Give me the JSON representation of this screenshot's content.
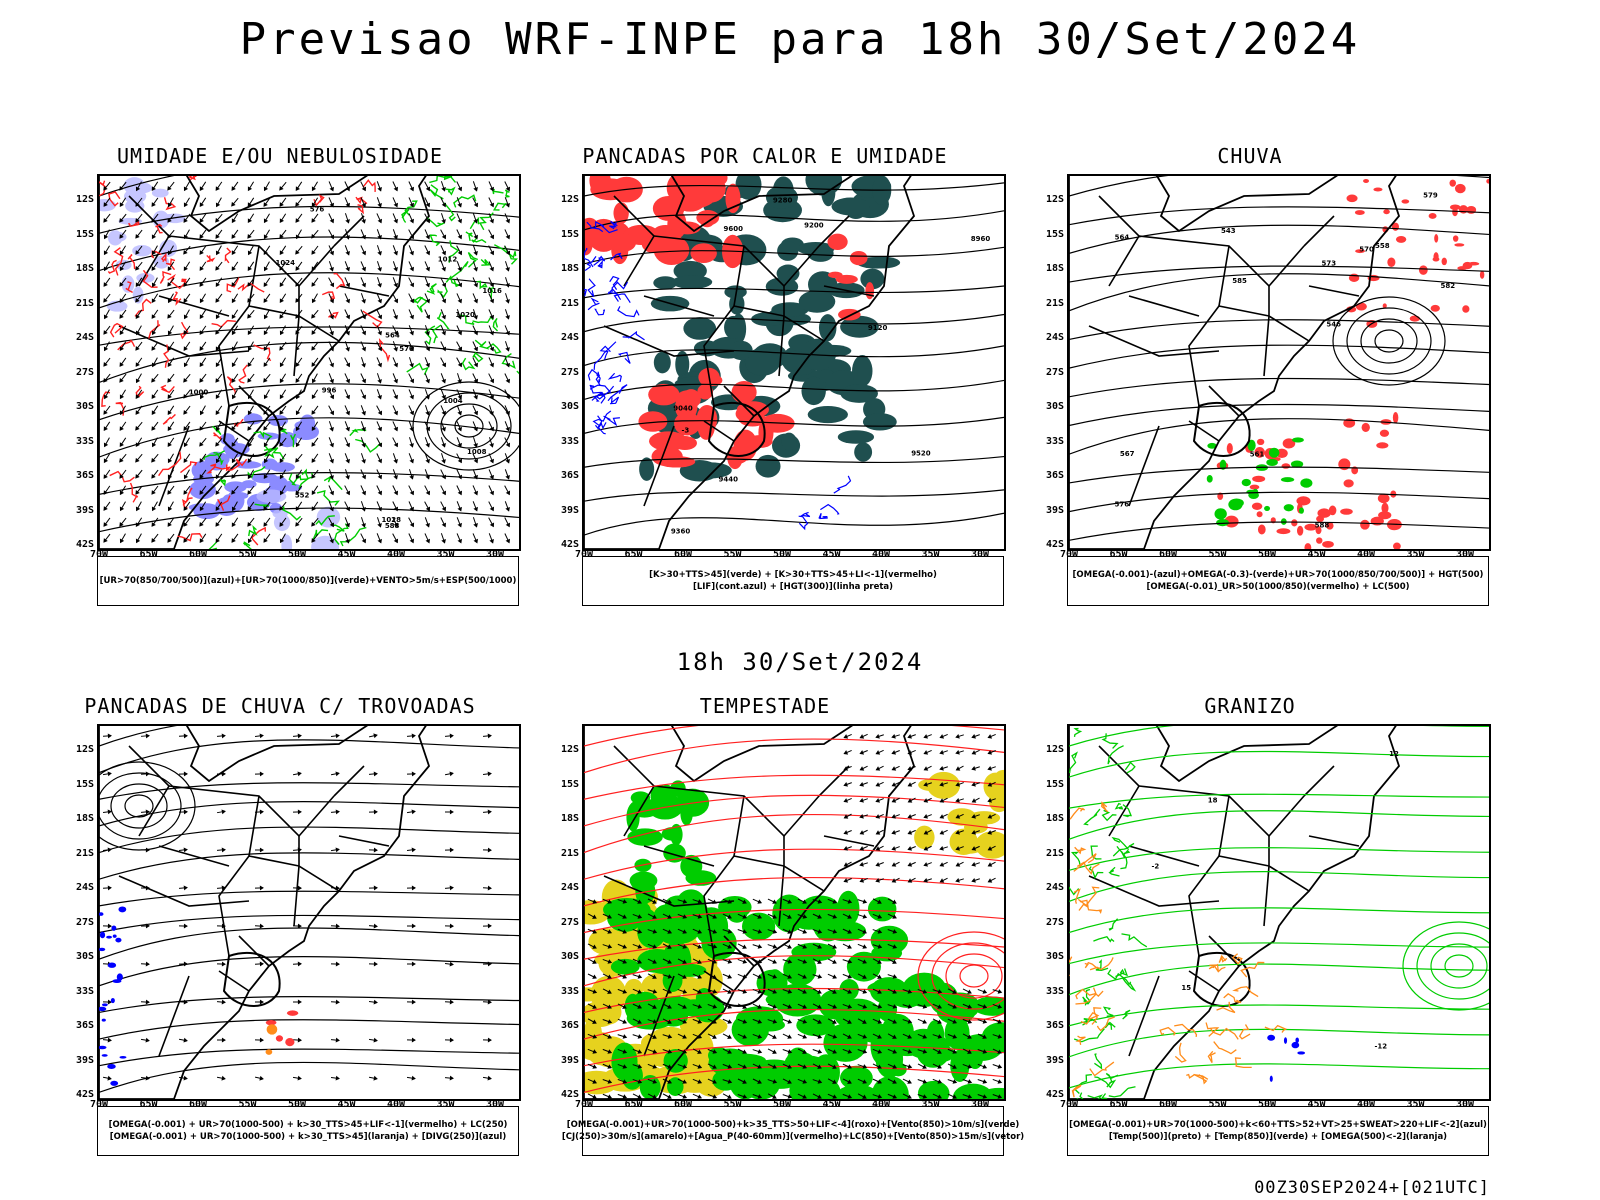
{
  "header": {
    "title": "Previsao WRF-INPE  para 18h 30/Set/2024",
    "subtitle": "18h 30/Set/2024"
  },
  "colors": {
    "land_border": "#000000",
    "blue_fill": "#7f7fff",
    "blue_line": "#0000ff",
    "green_line": "#00cc00",
    "green_fill": "#00cc00",
    "red_line": "#ff2020",
    "red_fill": "#ff3a3a",
    "dark_teal_fill": "#1f4f4f",
    "yellow_fill": "#e6d21e",
    "orange_line": "#ff8c1a",
    "light_purple_fill": "#b8b8ff"
  },
  "axes": {
    "lat_labels": [
      "12S",
      "15S",
      "18S",
      "21S",
      "24S",
      "27S",
      "30S",
      "33S",
      "36S",
      "39S",
      "42S"
    ],
    "lon_labels": [
      "70W",
      "65W",
      "60W",
      "55W",
      "50W",
      "45W",
      "40W",
      "35W",
      "30W"
    ]
  },
  "panels": [
    {
      "id": "umidade",
      "title": "UMIDADE E/OU NEBULOSIDADE",
      "legend": [
        "[UR>70(850/700/500)](azul)+[UR>70(1000/850)](verde)+VENTO>5m/s+ESP(500/1000)"
      ],
      "contour_labels": [
        "1008",
        "1004",
        "1012",
        "1020",
        "1024",
        "1028",
        "1016",
        "1000",
        "996",
        "552",
        "576",
        "564",
        "570",
        "588"
      ]
    },
    {
      "id": "pancadas-calor",
      "title": "PANCADAS POR CALOR E UMIDADE",
      "legend": [
        "[K>30+TTS>45](verde) + [K>30+TTS>45+LI<-1](vermelho)",
        "[LIF](cont.azul) + [HGT(300)](linha preta)"
      ],
      "contour_labels": [
        "9600",
        "9520",
        "9440",
        "9360",
        "9280",
        "9200",
        "9120",
        "9040",
        "8960",
        "-3"
      ]
    },
    {
      "id": "chuva",
      "title": "CHUVA",
      "legend": [
        "[OMEGA(-0.001)-(azul)+OMEGA(-0.3)-(verde)+UR>70(1000/850/700/500)] + HGT(500)",
        "[OMEGA(-0.01)_UR>50(1000/850)(vermelho) + LC(500)"
      ],
      "contour_labels": [
        "588",
        "585",
        "582",
        "579",
        "576",
        "573",
        "570",
        "567",
        "564",
        "561",
        "558",
        "546",
        "543"
      ]
    },
    {
      "id": "trovoadas",
      "title": "PANCADAS DE CHUVA C/ TROVOADAS",
      "legend": [
        "[OMEGA(-0.001) + UR>70(1000-500) + k>30_TTS>45+LIF<-1](vermelho) + LC(250)",
        "[OMEGA(-0.001) + UR>70(1000-500) + k>30_TTS>45](laranja) + [DIVG(250)](azul)"
      ],
      "contour_labels": []
    },
    {
      "id": "tempestade",
      "title": "TEMPESTADE",
      "legend": [
        "[OMEGA(-0.001)+UR>70(1000-500)+k>35_TTS>50+LIF<-4](roxo)+[Vento(850)>10m/s](verde)",
        "[CJ(250)>30m/s](amarelo)+[Agua_P(40-60mm)](vermelho)+LC(850)+[Vento(850)>15m/s](vetor)"
      ],
      "contour_labels": []
    },
    {
      "id": "granizo",
      "title": "GRANIZO",
      "legend": [
        "[OMEGA(-0.001)+UR>70(1000-500)+k<60+TTS>52+VT>25+SWEAT>220+LIF<-2](azul)",
        "[Temp(500)](preto) + [Temp(850)](verde) + [OMEGA(500)<-2](laranja)"
      ],
      "contour_labels": [
        "12",
        "15",
        "18",
        "-12",
        "-2"
      ]
    }
  ],
  "footer": {
    "stamp": "00Z30SEP2024+[021UTC]"
  }
}
